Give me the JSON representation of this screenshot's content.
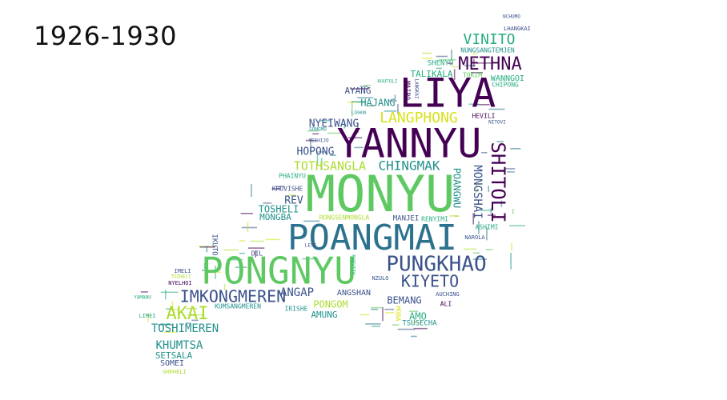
{
  "title": "1926-1930",
  "palette": {
    "dark_purple": "#440154",
    "indigo": "#3b528b",
    "teal": "#21918c",
    "blue_teal": "#2c728e",
    "green": "#5ec962",
    "sea_green": "#27ad81",
    "lime": "#addc30",
    "yellow": "#d8e219"
  },
  "words": [
    {
      "text": "MONYU",
      "color": "green"
    },
    {
      "text": "POANGMAI",
      "color": "blue_teal"
    },
    {
      "text": "YANNYU",
      "color": "dark_purple"
    },
    {
      "text": "PONGNYU",
      "color": "green"
    },
    {
      "text": "LIYA",
      "color": "dark_purple"
    },
    {
      "text": "PUNGKHAO",
      "color": "indigo"
    },
    {
      "text": "METHNA",
      "color": "dark_purple"
    },
    {
      "text": "VINITO",
      "color": "sea_green"
    },
    {
      "text": "SHITOLI",
      "color": "dark_purple"
    },
    {
      "text": "KIYETO",
      "color": "indigo"
    },
    {
      "text": "IMKONGMEREN",
      "color": "indigo"
    },
    {
      "text": "AKAI",
      "color": "lime"
    },
    {
      "text": "LANGPHONG",
      "color": "yellow"
    },
    {
      "text": "CHINGMAK",
      "color": "teal"
    },
    {
      "text": "TOTHSANGLA",
      "color": "lime"
    },
    {
      "text": "MONGSHAI",
      "color": "indigo"
    },
    {
      "text": "TOSHIMEREN",
      "color": "teal"
    },
    {
      "text": "KHUMTSA",
      "color": "teal"
    },
    {
      "text": "NYEIWANG",
      "color": "indigo"
    },
    {
      "text": "HOPONG",
      "color": "indigo"
    },
    {
      "text": "ANGAP",
      "color": "indigo"
    },
    {
      "text": "HAJANG",
      "color": "teal"
    },
    {
      "text": "POANGWU",
      "color": "teal"
    },
    {
      "text": "TALIKALA",
      "color": "sea_green"
    },
    {
      "text": "REV",
      "color": "indigo"
    },
    {
      "text": "TOSHELI",
      "color": "teal"
    },
    {
      "text": "MONGBA",
      "color": "teal"
    },
    {
      "text": "AYANG",
      "color": "indigo"
    },
    {
      "text": "PONGOM",
      "color": "lime"
    },
    {
      "text": "BEMANG",
      "color": "indigo"
    },
    {
      "text": "AMUNG",
      "color": "teal"
    },
    {
      "text": "AMO",
      "color": "sea_green"
    },
    {
      "text": "SETSALA",
      "color": "teal"
    },
    {
      "text": "SOMEI",
      "color": "indigo"
    },
    {
      "text": "SHENYU",
      "color": "sea_green"
    },
    {
      "text": "WANNGOI",
      "color": "sea_green"
    },
    {
      "text": "ANGSHAN",
      "color": "indigo"
    },
    {
      "text": "MANJEI",
      "color": "indigo"
    },
    {
      "text": "RENYIMI",
      "color": "sea_green"
    },
    {
      "text": "RONGSENMONGLA",
      "color": "lime"
    },
    {
      "text": "IKUTO",
      "color": "indigo"
    },
    {
      "text": "TSUSECHA",
      "color": "teal"
    },
    {
      "text": "ASHIMI",
      "color": "sea_green"
    },
    {
      "text": "NUNGSANGTEMJEN",
      "color": "teal"
    },
    {
      "text": "PHAINYU",
      "color": "sea_green"
    },
    {
      "text": "KHUVISHE",
      "color": "indigo"
    },
    {
      "text": "LHANGKAI",
      "color": "indigo"
    },
    {
      "text": "CHIPONG",
      "color": "sea_green"
    },
    {
      "text": "NCHUMO",
      "color": "indigo"
    },
    {
      "text": "MAIPO",
      "color": "dark_purple"
    },
    {
      "text": "KUMSANGMEREN",
      "color": "teal"
    },
    {
      "text": "HEVILI",
      "color": "dark_purple"
    },
    {
      "text": "TOZHELI",
      "color": "lime"
    },
    {
      "text": "IMELI",
      "color": "indigo"
    },
    {
      "text": "NYELHOI",
      "color": "dark_purple"
    },
    {
      "text": "AUCHING",
      "color": "indigo"
    },
    {
      "text": "NAROLA",
      "color": "indigo"
    },
    {
      "text": "ALI",
      "color": "dark_purple"
    },
    {
      "text": "LIMEI",
      "color": "sea_green"
    },
    {
      "text": "GHOHELI",
      "color": "lime"
    },
    {
      "text": "SONGMO",
      "color": "teal"
    },
    {
      "text": "YESHIJO",
      "color": "indigo"
    },
    {
      "text": "KHUTOLI",
      "color": "sea_green"
    },
    {
      "text": "IRISHE",
      "color": "teal"
    },
    {
      "text": "NZULO",
      "color": "indigo"
    },
    {
      "text": "LEYE",
      "color": "indigo"
    },
    {
      "text": "DIL",
      "color": "indigo"
    },
    {
      "text": "YAMANU",
      "color": "sea_green"
    },
    {
      "text": "NITOVI",
      "color": "indigo"
    },
    {
      "text": "LIRHON",
      "color": "teal"
    },
    {
      "text": "KHEVITO",
      "color": "sea_green"
    },
    {
      "text": "MOBA",
      "color": "yellow"
    },
    {
      "text": "LANGKAI",
      "color": "indigo"
    },
    {
      "text": "TOKIM",
      "color": "green"
    }
  ]
}
